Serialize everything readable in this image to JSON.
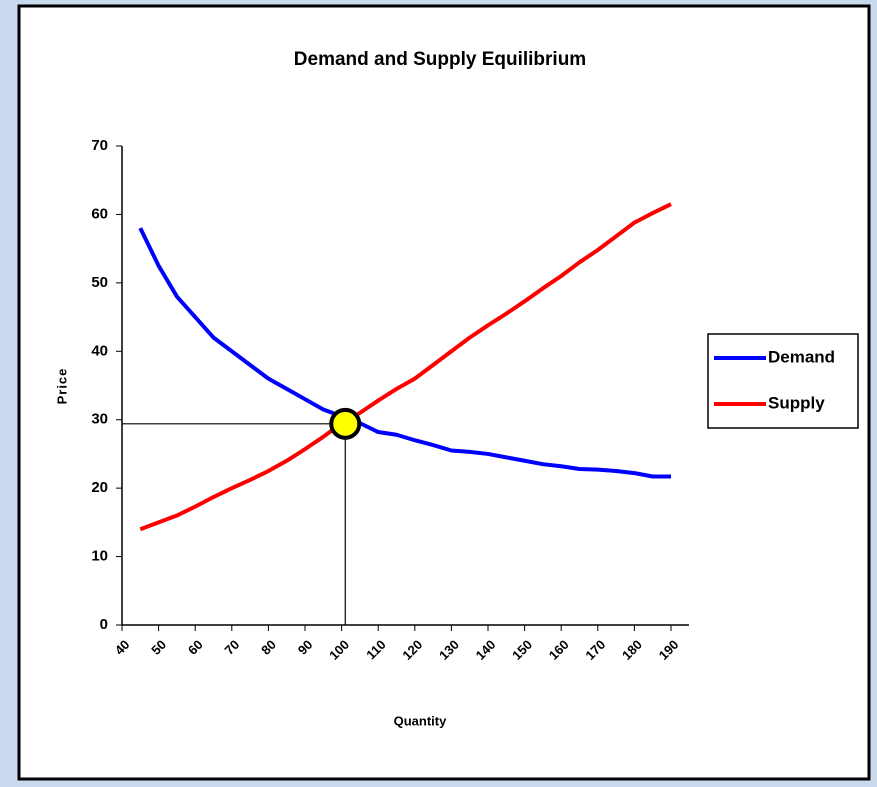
{
  "chart_data": {
    "type": "line",
    "title": "Demand and Supply Equilibrium",
    "xlabel": "Quantity",
    "ylabel": "Price",
    "x": [
      45,
      50,
      55,
      60,
      65,
      70,
      75,
      80,
      85,
      90,
      95,
      100,
      105,
      110,
      115,
      120,
      125,
      130,
      135,
      140,
      145,
      150,
      155,
      160,
      165,
      170,
      175,
      180,
      185,
      190
    ],
    "series": [
      {
        "name": "Demand",
        "color": "#0000ff",
        "values": [
          58,
          52.5,
          48,
          45,
          42,
          40,
          38,
          36,
          34.5,
          33,
          31.5,
          30.5,
          29.5,
          28.2,
          27.8,
          27,
          26.3,
          25.5,
          25.3,
          25,
          24.5,
          24,
          23.5,
          23.2,
          22.8,
          22.7,
          22.5,
          22.2,
          21.7,
          21.7
        ]
      },
      {
        "name": "Supply",
        "color": "#ff0000",
        "values": [
          14,
          15,
          16,
          17.3,
          18.7,
          20,
          21.2,
          22.5,
          24,
          25.7,
          27.5,
          29.5,
          31,
          32.8,
          34.5,
          36,
          38,
          40,
          42,
          43.8,
          45.5,
          47.3,
          49.2,
          51,
          53,
          54.8,
          56.8,
          58.8,
          60.2,
          61.5
        ]
      }
    ],
    "equilibrium": {
      "x": 101,
      "y": 29.4,
      "color": "#ffff00"
    },
    "xlim": [
      40,
      190
    ],
    "xticks": [
      40,
      50,
      60,
      70,
      80,
      90,
      100,
      110,
      120,
      130,
      140,
      150,
      160,
      170,
      180,
      190
    ],
    "ylim": [
      0,
      70
    ],
    "yticks": [
      0,
      10,
      20,
      30,
      40,
      50,
      60,
      70
    ],
    "grid": false,
    "legend": "right"
  }
}
